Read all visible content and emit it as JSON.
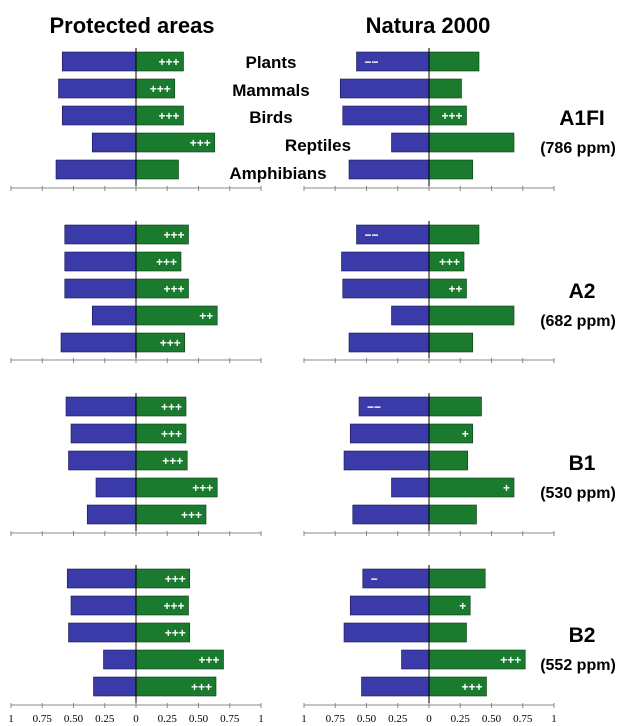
{
  "chart_data": {
    "type": "bar",
    "panel_titles": [
      "Protected areas",
      "Natura 2000"
    ],
    "categories": [
      "Plants",
      "Mammals",
      "Birds",
      "Reptiles",
      "Amphibians"
    ],
    "xlim": [
      -1,
      1
    ],
    "x_ticks": [
      "1",
      "0.75",
      "0.50",
      "0.25",
      "0",
      "0.25",
      "0.50",
      "0.75",
      "1"
    ],
    "colors": {
      "negative": "#3a3aa8",
      "positive": "#1a7a2e"
    },
    "scenarios": [
      {
        "name": "A1FI",
        "ppm": "(786 ppm)",
        "panels": [
          {
            "neg": [
              0.59,
              0.62,
              0.59,
              0.35,
              0.64
            ],
            "pos": [
              0.38,
              0.31,
              0.38,
              0.63,
              0.34
            ],
            "signs": [
              "+++",
              "+++",
              "+++",
              "+++",
              ""
            ]
          },
          {
            "neg": [
              0.58,
              0.71,
              0.69,
              0.3,
              0.64
            ],
            "pos": [
              0.4,
              0.26,
              0.3,
              0.68,
              0.35
            ],
            "signs": [
              "−−",
              "",
              "+++",
              "",
              ""
            ]
          }
        ]
      },
      {
        "name": "A2",
        "ppm": "(682 ppm)",
        "panels": [
          {
            "neg": [
              0.57,
              0.57,
              0.57,
              0.35,
              0.6
            ],
            "pos": [
              0.42,
              0.36,
              0.42,
              0.65,
              0.39
            ],
            "signs": [
              "+++",
              "+++",
              "+++",
              "++",
              "+++"
            ]
          },
          {
            "neg": [
              0.58,
              0.7,
              0.69,
              0.3,
              0.64
            ],
            "pos": [
              0.4,
              0.28,
              0.3,
              0.68,
              0.35
            ],
            "signs": [
              "−−",
              "+++",
              "++",
              "",
              ""
            ]
          }
        ]
      },
      {
        "name": "B1",
        "ppm": "(530 ppm)",
        "panels": [
          {
            "neg": [
              0.56,
              0.52,
              0.54,
              0.32,
              0.39
            ],
            "pos": [
              0.4,
              0.4,
              0.41,
              0.65,
              0.56
            ],
            "signs": [
              "+++",
              "+++",
              "+++",
              "+++",
              "+++"
            ]
          },
          {
            "neg": [
              0.56,
              0.63,
              0.68,
              0.3,
              0.61
            ],
            "pos": [
              0.42,
              0.35,
              0.31,
              0.68,
              0.38
            ],
            "signs": [
              "−−",
              "+",
              "",
              "+",
              ""
            ]
          }
        ]
      },
      {
        "name": "B2",
        "ppm": "(552 ppm)",
        "panels": [
          {
            "neg": [
              0.55,
              0.52,
              0.54,
              0.26,
              0.34
            ],
            "pos": [
              0.43,
              0.42,
              0.43,
              0.7,
              0.64
            ],
            "signs": [
              "+++",
              "+++",
              "+++",
              "+++",
              "+++"
            ]
          },
          {
            "neg": [
              0.53,
              0.63,
              0.68,
              0.22,
              0.54
            ],
            "pos": [
              0.45,
              0.33,
              0.3,
              0.77,
              0.46
            ],
            "signs": [
              "−",
              "+",
              "",
              "+++",
              "+++"
            ]
          }
        ]
      }
    ]
  }
}
